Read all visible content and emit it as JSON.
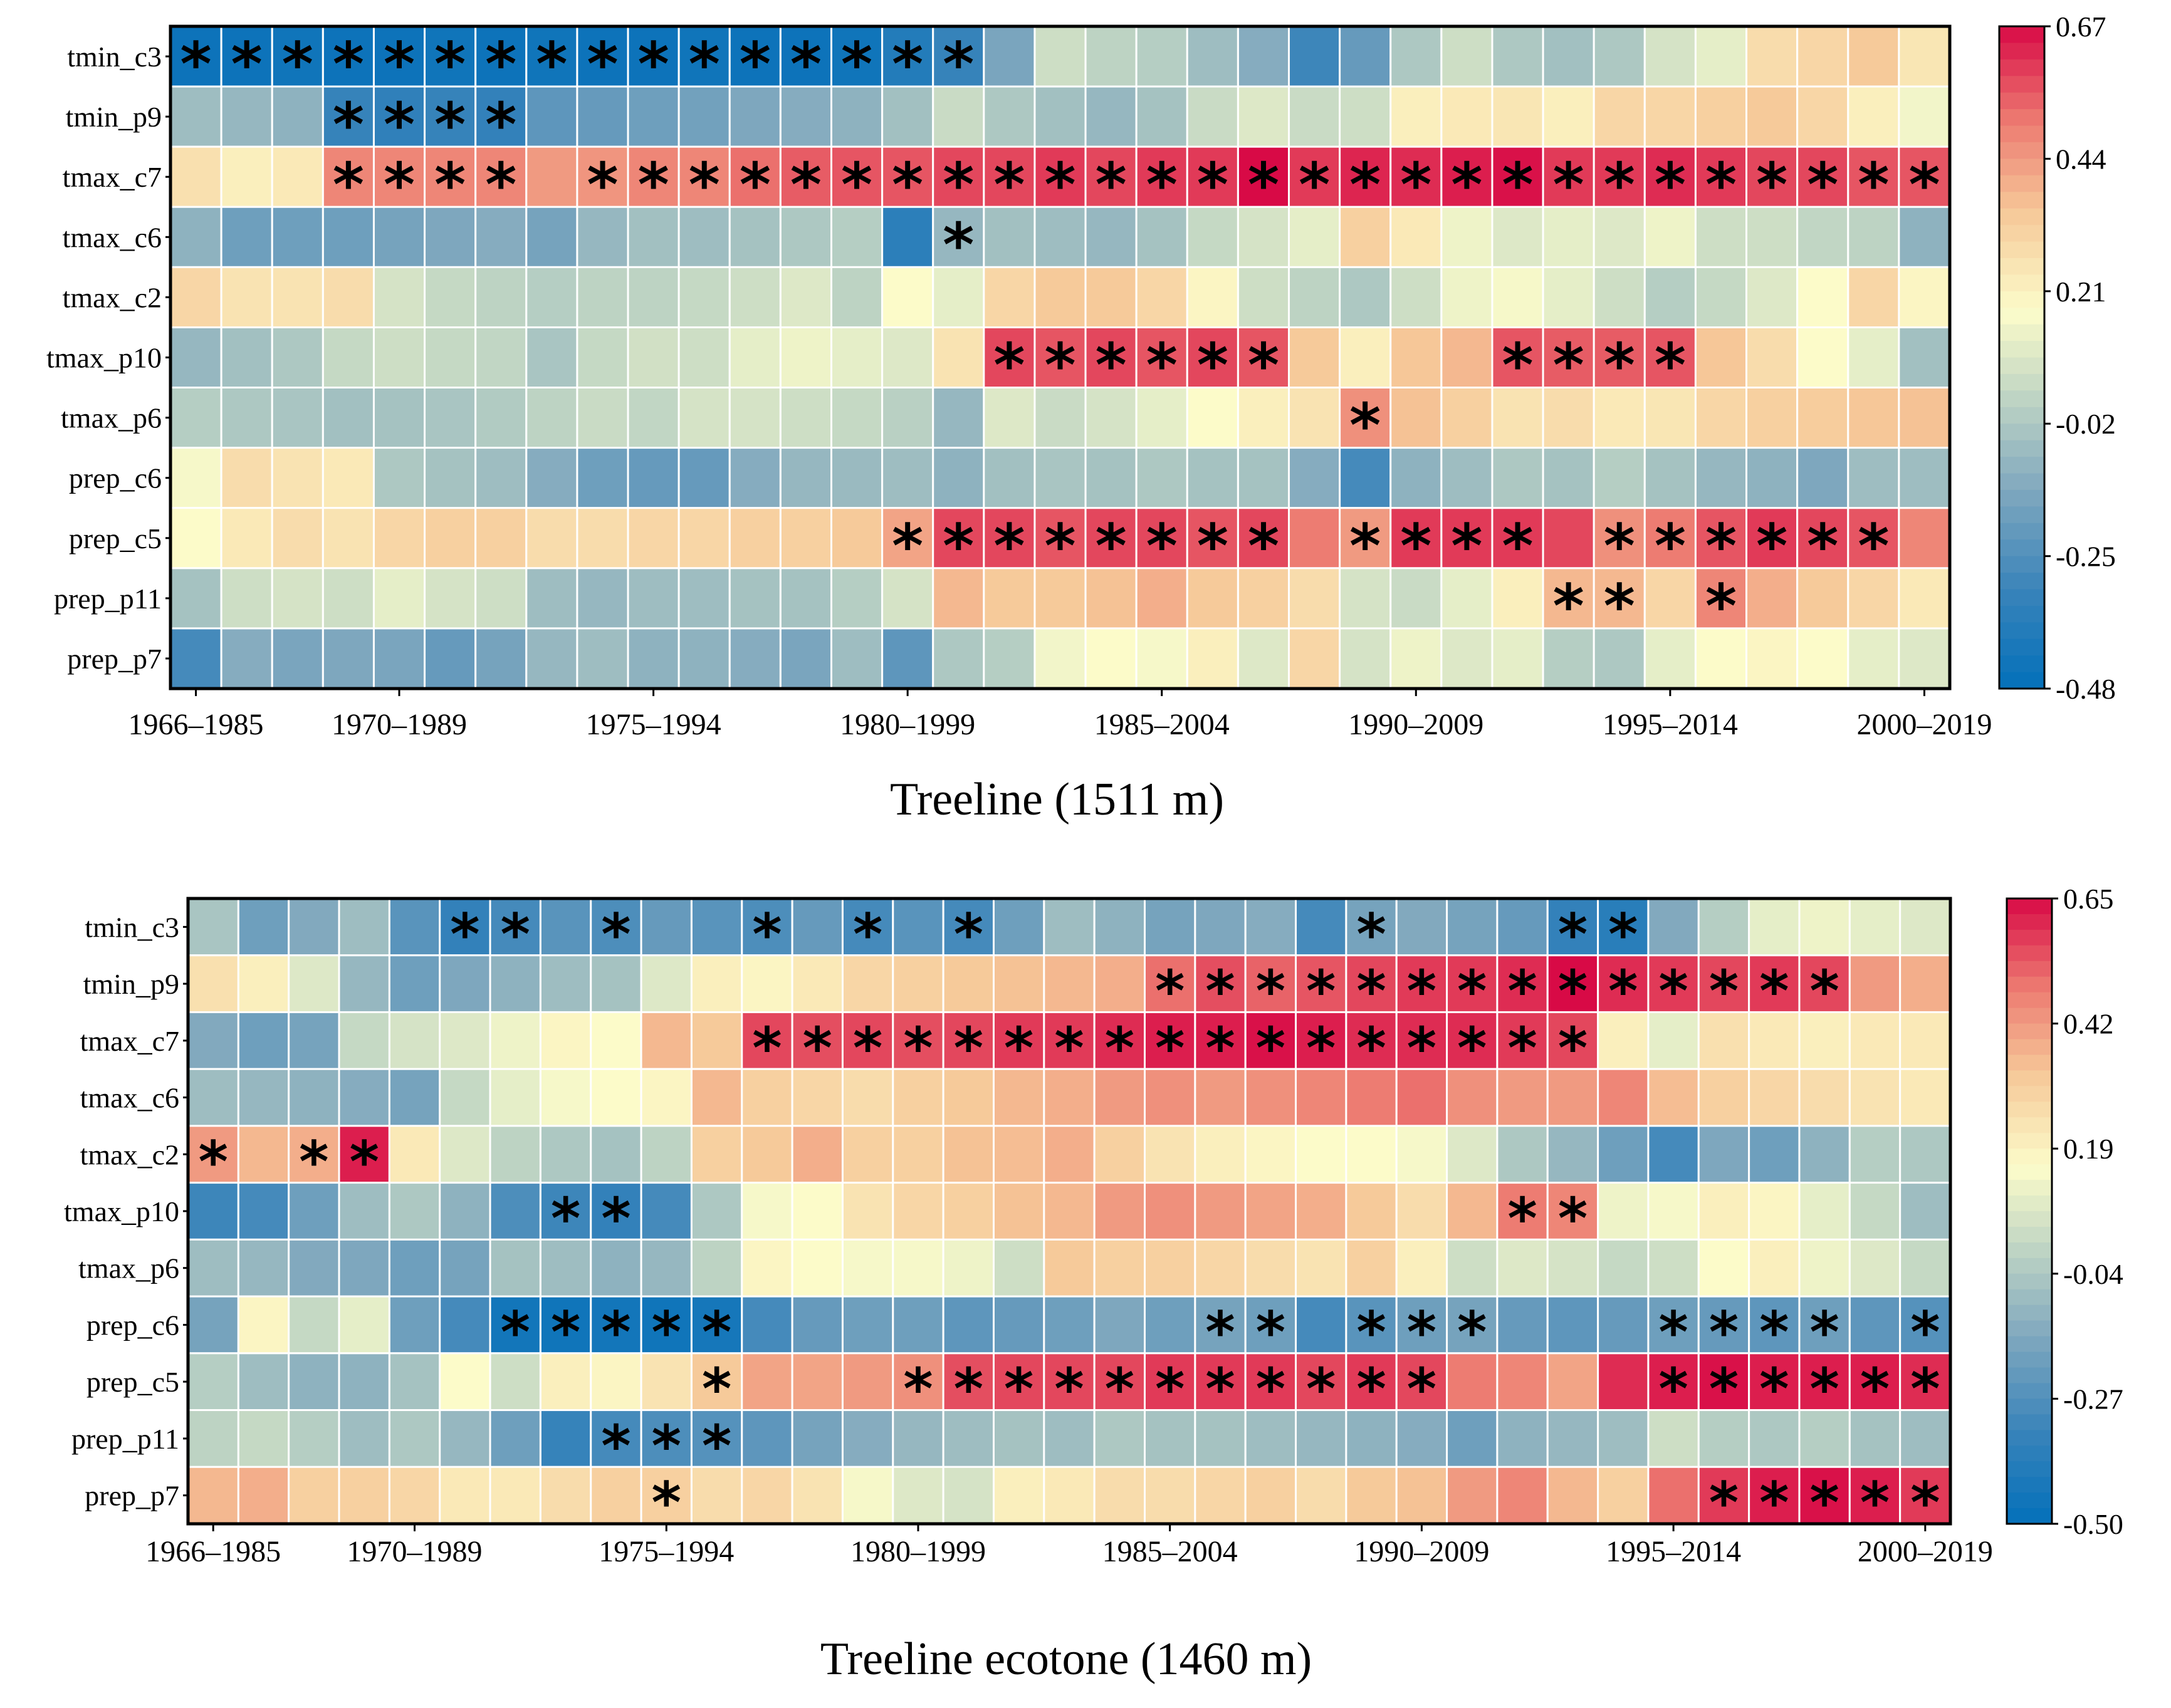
{
  "chart_data": [
    {
      "type": "heatmap",
      "title": "Treeline (1511 m)",
      "rows": [
        "tmin_c3",
        "tmin_p9",
        "tmax_c7",
        "tmax_c6",
        "tmax_c2",
        "tmax_p10",
        "tmax_p6",
        "prep_c6",
        "prep_c5",
        "prep_p11",
        "prep_p7"
      ],
      "columns": [
        "1966–1985",
        "1967–1986",
        "1968–1987",
        "1969–1988",
        "1970–1989",
        "1971–1990",
        "1972–1991",
        "1973–1992",
        "1974–1993",
        "1975–1994",
        "1976–1995",
        "1977–1996",
        "1978–1997",
        "1979–1998",
        "1980–1999",
        "1981–2000",
        "1982–2001",
        "1983–2002",
        "1984–2003",
        "1985–2004",
        "1986–2005",
        "1987–2006",
        "1988–2007",
        "1989–2008",
        "1990–2009",
        "1991–2010",
        "1992–2011",
        "1993–2012",
        "1994–2013",
        "1995–2014",
        "1996–2015",
        "1997–2016",
        "1998–2017",
        "1999–2018",
        "2000–2019"
      ],
      "x_tick_labels": [
        "1966–1985",
        "1970–1989",
        "1975–1994",
        "1980–1999",
        "1985–2004",
        "1990–2009",
        "1995–2014",
        "2000–2019"
      ],
      "x_tick_indices": [
        0,
        4,
        9,
        14,
        19,
        24,
        29,
        34
      ],
      "values": [
        [
          -0.45,
          -0.45,
          -0.44,
          -0.45,
          -0.45,
          -0.44,
          -0.45,
          -0.44,
          -0.45,
          -0.45,
          -0.44,
          -0.45,
          -0.45,
          -0.44,
          -0.38,
          -0.32,
          -0.15,
          0.06,
          0.02,
          0.0,
          -0.06,
          -0.12,
          -0.3,
          -0.2,
          -0.02,
          0.06,
          -0.02,
          -0.05,
          -0.02,
          0.08,
          0.12,
          0.28,
          0.3,
          0.34,
          0.25
        ],
        [
          -0.06,
          -0.08,
          -0.1,
          -0.32,
          -0.34,
          -0.32,
          -0.33,
          -0.22,
          -0.2,
          -0.18,
          -0.17,
          -0.14,
          -0.12,
          -0.1,
          -0.05,
          0.05,
          -0.02,
          -0.05,
          -0.08,
          -0.04,
          0.05,
          0.1,
          0.05,
          0.06,
          0.22,
          0.24,
          0.25,
          0.22,
          0.3,
          0.3,
          0.32,
          0.34,
          0.3,
          0.22,
          0.15
        ],
        [
          0.27,
          0.22,
          0.24,
          0.48,
          0.48,
          0.48,
          0.48,
          0.44,
          0.45,
          0.48,
          0.48,
          0.52,
          0.55,
          0.56,
          0.56,
          0.58,
          0.58,
          0.6,
          0.58,
          0.6,
          0.6,
          0.67,
          0.6,
          0.63,
          0.62,
          0.64,
          0.66,
          0.6,
          0.6,
          0.62,
          0.6,
          0.58,
          0.58,
          0.56,
          0.56
        ],
        [
          -0.1,
          -0.18,
          -0.18,
          -0.18,
          -0.16,
          -0.14,
          -0.12,
          -0.16,
          -0.08,
          -0.05,
          -0.06,
          -0.04,
          -0.02,
          0.0,
          -0.35,
          -0.08,
          -0.05,
          -0.06,
          -0.08,
          -0.04,
          0.04,
          0.08,
          0.12,
          0.32,
          0.24,
          0.14,
          0.1,
          0.12,
          0.1,
          0.14,
          0.06,
          0.06,
          0.03,
          0.02,
          -0.1
        ],
        [
          0.3,
          0.26,
          0.26,
          0.28,
          0.08,
          0.04,
          0.02,
          0.0,
          0.02,
          0.02,
          0.04,
          0.06,
          0.1,
          0.02,
          0.18,
          0.12,
          0.3,
          0.34,
          0.34,
          0.3,
          0.2,
          0.06,
          0.02,
          -0.02,
          0.06,
          0.14,
          0.16,
          0.12,
          0.06,
          0.0,
          0.04,
          0.1,
          0.18,
          0.3,
          0.2
        ],
        [
          -0.08,
          -0.05,
          -0.02,
          0.04,
          0.06,
          0.04,
          0.03,
          -0.03,
          0.04,
          0.07,
          0.06,
          0.12,
          0.14,
          0.12,
          0.1,
          0.26,
          0.58,
          0.56,
          0.58,
          0.56,
          0.58,
          0.56,
          0.34,
          0.22,
          0.35,
          0.38,
          0.56,
          0.55,
          0.55,
          0.56,
          0.35,
          0.28,
          0.18,
          0.12,
          -0.05
        ],
        [
          0.0,
          -0.02,
          -0.03,
          -0.05,
          -0.04,
          -0.03,
          -0.01,
          0.02,
          0.05,
          0.03,
          0.08,
          0.08,
          0.06,
          0.04,
          0.01,
          -0.08,
          0.1,
          0.05,
          0.08,
          0.12,
          0.18,
          0.22,
          0.26,
          0.46,
          0.36,
          0.32,
          0.26,
          0.28,
          0.24,
          0.25,
          0.3,
          0.32,
          0.33,
          0.35,
          0.36
        ],
        [
          0.16,
          0.28,
          0.26,
          0.24,
          -0.02,
          -0.04,
          -0.06,
          -0.12,
          -0.18,
          -0.2,
          -0.2,
          -0.12,
          -0.08,
          -0.07,
          -0.06,
          -0.1,
          -0.05,
          -0.03,
          -0.04,
          -0.02,
          -0.04,
          -0.04,
          -0.12,
          -0.28,
          -0.1,
          -0.06,
          -0.02,
          -0.04,
          0.0,
          -0.04,
          -0.08,
          -0.1,
          -0.14,
          -0.06,
          -0.06
        ],
        [
          0.18,
          0.24,
          0.28,
          0.26,
          0.3,
          0.32,
          0.32,
          0.28,
          0.28,
          0.3,
          0.3,
          0.32,
          0.32,
          0.34,
          0.42,
          0.58,
          0.58,
          0.56,
          0.58,
          0.58,
          0.56,
          0.58,
          0.5,
          0.44,
          0.6,
          0.6,
          0.6,
          0.58,
          0.46,
          0.5,
          0.56,
          0.6,
          0.58,
          0.56,
          0.48
        ],
        [
          -0.04,
          0.06,
          0.08,
          0.06,
          0.12,
          0.08,
          0.06,
          -0.06,
          -0.08,
          -0.06,
          -0.06,
          -0.04,
          -0.04,
          0.0,
          0.08,
          0.38,
          0.34,
          0.34,
          0.36,
          0.4,
          0.34,
          0.32,
          0.28,
          0.08,
          0.05,
          0.12,
          0.22,
          0.38,
          0.38,
          0.3,
          0.48,
          0.4,
          0.34,
          0.3,
          0.24
        ],
        [
          -0.28,
          -0.12,
          -0.15,
          -0.14,
          -0.15,
          -0.2,
          -0.16,
          -0.08,
          -0.06,
          -0.1,
          -0.1,
          -0.12,
          -0.15,
          -0.06,
          -0.22,
          -0.02,
          0.0,
          0.15,
          0.18,
          0.16,
          0.22,
          0.1,
          0.3,
          0.08,
          0.14,
          0.1,
          0.12,
          0.0,
          -0.02,
          0.12,
          0.18,
          0.2,
          0.18,
          0.12,
          0.1
        ]
      ],
      "significant": [
        [
          0,
          1,
          2,
          3,
          4,
          5,
          6,
          7,
          8,
          9,
          10,
          11,
          12,
          13,
          14,
          15
        ],
        [
          3,
          4,
          5,
          6
        ],
        [
          3,
          4,
          5,
          6,
          8,
          9,
          10,
          11,
          12,
          13,
          14,
          15,
          16,
          17,
          18,
          19,
          20,
          21,
          22,
          23,
          24,
          25,
          26,
          27,
          28,
          29,
          30,
          31,
          32,
          33,
          34
        ],
        [
          15
        ],
        [],
        [
          16,
          17,
          18,
          19,
          20,
          21,
          26,
          27,
          28,
          29
        ],
        [
          23
        ],
        [],
        [
          14,
          15,
          16,
          17,
          18,
          19,
          20,
          21,
          23,
          24,
          25,
          26,
          28,
          29,
          30,
          31,
          32,
          33
        ],
        [
          27,
          28,
          30
        ],
        []
      ],
      "colorbar": {
        "min": -0.48,
        "max": 0.67,
        "tick_labels": [
          "0.67",
          "0.44",
          "0.21",
          "-0.02",
          "-0.25",
          "-0.48"
        ],
        "tick_values": [
          0.67,
          0.44,
          0.21,
          -0.02,
          -0.25,
          -0.48
        ]
      },
      "marker_symbol": "*"
    },
    {
      "type": "heatmap",
      "title": "Treeline ecotone (1460 m)",
      "rows": [
        "tmin_c3",
        "tmin_p9",
        "tmax_c7",
        "tmax_c6",
        "tmax_c2",
        "tmax_p10",
        "tmax_p6",
        "prep_c6",
        "prep_c5",
        "prep_p11",
        "prep_p7"
      ],
      "columns": [
        "1966–1985",
        "1967–1986",
        "1968–1987",
        "1969–1988",
        "1970–1989",
        "1971–1990",
        "1972–1991",
        "1973–1992",
        "1974–1993",
        "1975–1994",
        "1976–1995",
        "1977–1996",
        "1978–1997",
        "1979–1998",
        "1980–1999",
        "1981–2000",
        "1982–2001",
        "1983–2002",
        "1984–2003",
        "1985–2004",
        "1986–2005",
        "1987–2006",
        "1988–2007",
        "1989–2008",
        "1990–2009",
        "1991–2010",
        "1992–2011",
        "1993–2012",
        "1994–2013",
        "1995–2014",
        "1996–2015",
        "1997–2016",
        "1998–2017",
        "1999–2018",
        "2000–2019"
      ],
      "x_tick_labels": [
        "1966–1985",
        "1970–1989",
        "1975–1994",
        "1980–1999",
        "1985–2004",
        "1990–2009",
        "1995–2014",
        "2000–2019"
      ],
      "x_tick_indices": [
        0,
        4,
        9,
        14,
        19,
        24,
        29,
        34
      ],
      "values": [
        [
          -0.05,
          -0.2,
          -0.15,
          -0.08,
          -0.25,
          -0.35,
          -0.3,
          -0.25,
          -0.28,
          -0.22,
          -0.25,
          -0.28,
          -0.22,
          -0.3,
          -0.25,
          -0.3,
          -0.2,
          -0.08,
          -0.12,
          -0.18,
          -0.16,
          -0.14,
          -0.3,
          -0.18,
          -0.15,
          -0.18,
          -0.22,
          -0.35,
          -0.38,
          -0.15,
          -0.02,
          0.1,
          0.12,
          0.1,
          0.08
        ],
        [
          0.25,
          0.2,
          0.08,
          -0.1,
          -0.2,
          -0.16,
          -0.12,
          -0.08,
          -0.06,
          0.08,
          0.2,
          0.18,
          0.22,
          0.28,
          0.3,
          0.32,
          0.34,
          0.36,
          0.38,
          0.5,
          0.55,
          0.52,
          0.54,
          0.56,
          0.58,
          0.58,
          0.6,
          0.65,
          0.6,
          0.58,
          0.56,
          0.58,
          0.56,
          0.42,
          0.38
        ],
        [
          -0.15,
          -0.2,
          -0.18,
          0.02,
          0.06,
          0.08,
          0.12,
          0.18,
          0.16,
          0.36,
          0.32,
          0.56,
          0.55,
          0.56,
          0.55,
          0.56,
          0.58,
          0.58,
          0.6,
          0.62,
          0.62,
          0.64,
          0.62,
          0.6,
          0.6,
          0.6,
          0.58,
          0.56,
          0.2,
          0.1,
          0.25,
          0.22,
          0.2,
          0.22,
          0.22
        ],
        [
          -0.08,
          -0.1,
          -0.12,
          -0.14,
          -0.18,
          0.02,
          0.1,
          0.14,
          0.16,
          0.18,
          0.36,
          0.3,
          0.28,
          0.26,
          0.3,
          0.32,
          0.36,
          0.38,
          0.42,
          0.44,
          0.42,
          0.44,
          0.46,
          0.48,
          0.5,
          0.44,
          0.42,
          0.42,
          0.46,
          0.35,
          0.3,
          0.28,
          0.26,
          0.24,
          0.22
        ],
        [
          0.42,
          0.36,
          0.38,
          0.62,
          0.22,
          0.08,
          0.0,
          -0.04,
          -0.06,
          0.0,
          0.3,
          0.32,
          0.38,
          0.3,
          0.3,
          0.34,
          0.35,
          0.38,
          0.3,
          0.24,
          0.2,
          0.18,
          0.16,
          0.16,
          0.14,
          0.08,
          -0.04,
          -0.1,
          -0.2,
          -0.3,
          -0.16,
          -0.2,
          -0.12,
          -0.02,
          -0.04
        ],
        [
          -0.32,
          -0.3,
          -0.2,
          -0.08,
          -0.04,
          -0.12,
          -0.28,
          -0.32,
          -0.35,
          -0.3,
          -0.04,
          0.14,
          0.16,
          0.24,
          0.28,
          0.3,
          0.34,
          0.36,
          0.42,
          0.44,
          0.42,
          0.4,
          0.38,
          0.32,
          0.26,
          0.36,
          0.48,
          0.46,
          0.12,
          0.14,
          0.2,
          0.18,
          0.1,
          0.02,
          -0.08
        ],
        [
          -0.08,
          -0.1,
          -0.15,
          -0.16,
          -0.2,
          -0.18,
          -0.06,
          -0.08,
          -0.12,
          -0.1,
          0.0,
          0.18,
          0.16,
          0.14,
          0.14,
          0.12,
          0.04,
          0.32,
          0.3,
          0.3,
          0.28,
          0.26,
          0.24,
          0.3,
          0.2,
          0.04,
          0.08,
          0.06,
          0.02,
          0.04,
          0.16,
          0.2,
          0.12,
          0.08,
          0.02
        ],
        [
          -0.18,
          0.18,
          0.02,
          0.1,
          -0.2,
          -0.3,
          -0.45,
          -0.46,
          -0.45,
          -0.46,
          -0.44,
          -0.3,
          -0.22,
          -0.2,
          -0.2,
          -0.24,
          -0.22,
          -0.2,
          -0.16,
          -0.2,
          -0.18,
          -0.2,
          -0.3,
          -0.25,
          -0.2,
          -0.18,
          -0.22,
          -0.24,
          -0.22,
          -0.2,
          -0.22,
          -0.24,
          -0.2,
          -0.24,
          -0.26
        ],
        [
          -0.02,
          -0.08,
          -0.12,
          -0.12,
          -0.06,
          0.16,
          0.04,
          0.2,
          0.18,
          0.24,
          0.32,
          0.4,
          0.4,
          0.42,
          0.44,
          0.55,
          0.56,
          0.56,
          0.56,
          0.58,
          0.58,
          0.58,
          0.56,
          0.58,
          0.56,
          0.48,
          0.46,
          0.4,
          0.6,
          0.62,
          0.64,
          0.62,
          0.62,
          0.62,
          0.6
        ],
        [
          0.0,
          0.02,
          -0.02,
          -0.08,
          -0.04,
          -0.1,
          -0.2,
          -0.34,
          -0.3,
          -0.28,
          -0.26,
          -0.24,
          -0.18,
          -0.14,
          -0.1,
          -0.08,
          -0.06,
          -0.08,
          -0.04,
          -0.06,
          -0.06,
          -0.08,
          -0.1,
          -0.12,
          -0.14,
          -0.2,
          -0.12,
          -0.1,
          -0.08,
          0.04,
          -0.02,
          -0.04,
          -0.02,
          -0.06,
          -0.08
        ],
        [
          0.36,
          0.38,
          0.3,
          0.3,
          0.28,
          0.22,
          0.22,
          0.26,
          0.3,
          0.3,
          0.26,
          0.28,
          0.24,
          0.14,
          0.08,
          0.06,
          0.2,
          0.22,
          0.26,
          0.26,
          0.28,
          0.3,
          0.26,
          0.32,
          0.34,
          0.42,
          0.46,
          0.36,
          0.3,
          0.5,
          0.58,
          0.62,
          0.64,
          0.62,
          0.58
        ]
      ],
      "significant": [
        [
          5,
          6,
          8,
          11,
          13,
          15,
          23,
          27,
          28
        ],
        [
          19,
          20,
          21,
          22,
          23,
          24,
          25,
          26,
          27,
          28,
          29,
          30,
          31,
          32
        ],
        [
          11,
          12,
          13,
          14,
          15,
          16,
          17,
          18,
          19,
          20,
          21,
          22,
          23,
          24,
          25,
          26,
          27
        ],
        [],
        [
          0,
          2,
          3
        ],
        [
          7,
          8,
          26,
          27
        ],
        [],
        [
          6,
          7,
          8,
          9,
          10,
          20,
          21,
          23,
          24,
          25,
          29,
          30,
          31,
          32,
          34
        ],
        [
          10,
          14,
          15,
          16,
          17,
          18,
          19,
          20,
          21,
          22,
          23,
          24,
          29,
          30,
          31,
          32,
          33,
          34
        ],
        [
          8,
          9,
          10
        ],
        [
          9,
          30,
          31,
          32,
          33,
          34
        ]
      ],
      "colorbar": {
        "min": -0.5,
        "max": 0.65,
        "tick_labels": [
          "0.65",
          "0.42",
          "0.19",
          "-0.04",
          "-0.27",
          "-0.50"
        ],
        "tick_values": [
          0.65,
          0.42,
          0.19,
          -0.04,
          -0.27,
          -0.5
        ]
      },
      "marker_symbol": "*"
    }
  ]
}
